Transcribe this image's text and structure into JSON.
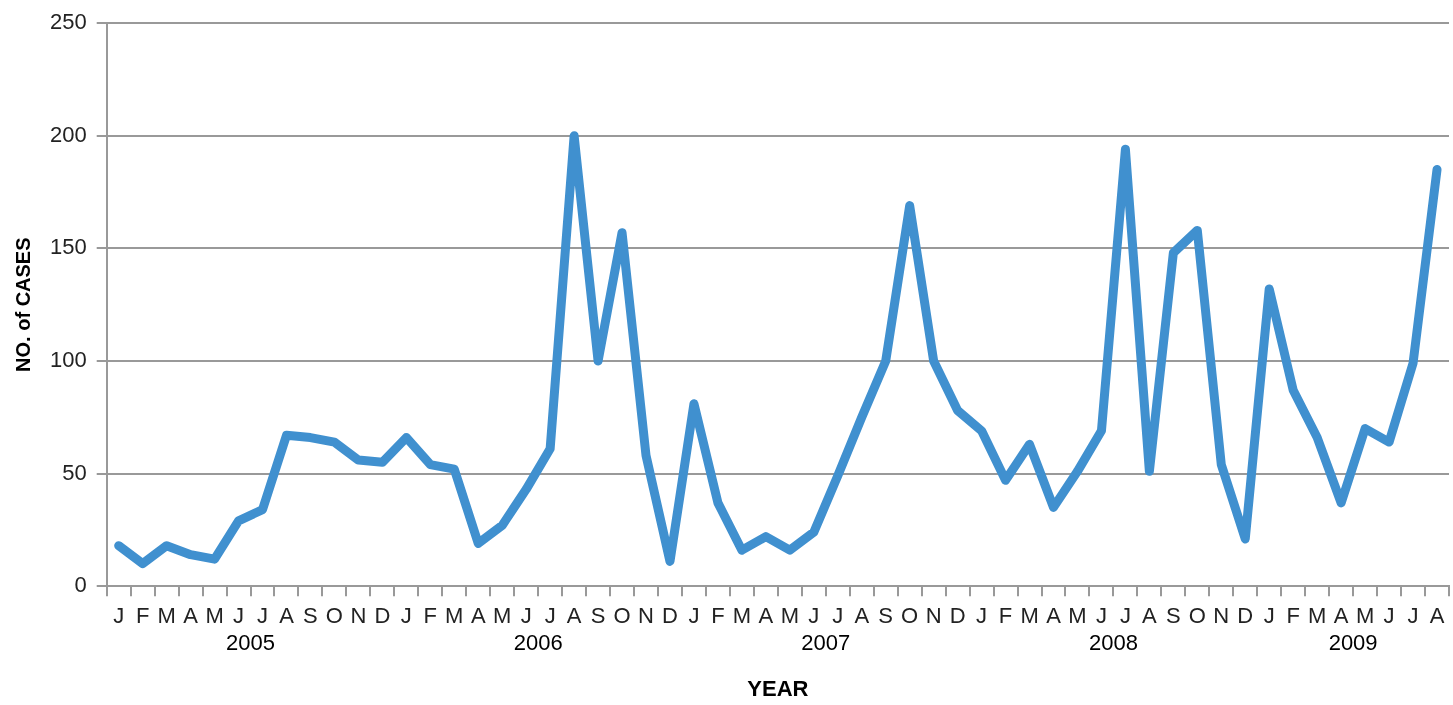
{
  "chart_data": {
    "type": "line",
    "xlabel": "YEAR",
    "ylabel": "NO. of CASES",
    "categories": [
      "J",
      "F",
      "M",
      "A",
      "M",
      "J",
      "J",
      "A",
      "S",
      "O",
      "N",
      "D",
      "J",
      "F",
      "M",
      "A",
      "M",
      "J",
      "J",
      "A",
      "S",
      "O",
      "N",
      "D",
      "J",
      "F",
      "M",
      "A",
      "M",
      "J",
      "J",
      "A",
      "S",
      "O",
      "N",
      "D",
      "J",
      "F",
      "M",
      "A",
      "M",
      "J",
      "J",
      "A",
      "S",
      "O",
      "N",
      "D",
      "J",
      "F",
      "M",
      "A",
      "M",
      "J",
      "J",
      "A"
    ],
    "series": [
      {
        "color": "#4090cf",
        "values": [
          18,
          10,
          18,
          14,
          12,
          29,
          34,
          67,
          66,
          64,
          56,
          55,
          66,
          54,
          52,
          19,
          27,
          43,
          61,
          200,
          100,
          157,
          58,
          11,
          81,
          37,
          16,
          22,
          16,
          24,
          49,
          75,
          100,
          169,
          100,
          78,
          69,
          47,
          63,
          35,
          51,
          69,
          194,
          51,
          148,
          158,
          54,
          21,
          132,
          87,
          66,
          37,
          70,
          64,
          99,
          185
        ]
      }
    ],
    "annotations": [
      "2005",
      "2006",
      "2007",
      "2008",
      "2009"
    ],
    "ylim": [
      0,
      250
    ],
    "yticks": [
      0,
      50,
      100,
      150,
      200,
      250
    ],
    "grid": "y",
    "legend": false,
    "marker": "none",
    "line_style": "solid"
  }
}
